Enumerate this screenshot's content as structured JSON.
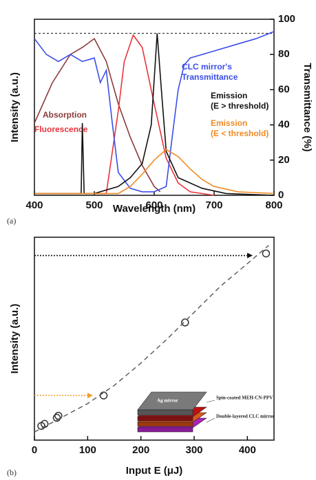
{
  "chart_data": [
    {
      "type": "line",
      "xlabel": "Wavelength (nm)",
      "ylabel": "Intensity (a.u.)",
      "y2label": "Transmittance (%)",
      "panel_label": "(a)",
      "xlim": [
        400,
        800
      ],
      "xticks": [
        400,
        500,
        600,
        700,
        800
      ],
      "ylim": [
        0,
        100
      ],
      "y2lim": [
        0,
        100
      ],
      "y2ticks": [
        0,
        20,
        40,
        60,
        80,
        100
      ],
      "reference_line": {
        "value": 92,
        "axis": "y2",
        "color": "#333333"
      },
      "series": [
        {
          "name": "Absorption",
          "color": "#8b3a3a",
          "mode": "lines",
          "x": [
            400,
            430,
            460,
            480,
            500,
            520,
            540,
            560,
            580,
            600,
            610
          ],
          "values": [
            41,
            64,
            80,
            84,
            89,
            76,
            52,
            33,
            17,
            5,
            2
          ]
        },
        {
          "name": "Fluorescence",
          "color": "#e8333a",
          "mode": "lines",
          "x": [
            500,
            520,
            540,
            550,
            565,
            580,
            600,
            620,
            640,
            660,
            700
          ],
          "values": [
            1,
            1,
            48,
            76,
            91,
            84,
            52,
            21,
            7,
            2,
            0
          ]
        },
        {
          "name": "CLC mirror's Transmittance",
          "color": "#3a4de8",
          "mode": "lines",
          "axis": "y2",
          "x": [
            400,
            420,
            440,
            460,
            480,
            500,
            510,
            520,
            530,
            540,
            560,
            580,
            600,
            620,
            630,
            640,
            650,
            660,
            700,
            740,
            770,
            800
          ],
          "values": [
            89,
            80,
            76,
            80,
            76,
            78,
            64,
            71,
            41,
            13,
            4,
            2,
            2,
            5,
            33,
            60,
            74,
            78,
            82,
            86,
            89,
            93
          ]
        },
        {
          "name": "Emission (E > threshold)",
          "color": "#111111",
          "mode": "lines",
          "x": [
            400,
            470,
            478,
            480,
            483,
            500,
            540,
            560,
            580,
            595,
            605,
            612,
            620,
            640,
            680,
            720,
            800
          ],
          "values": [
            1,
            1,
            1,
            41,
            1,
            1,
            5,
            10,
            18,
            40,
            92,
            60,
            25,
            10,
            4,
            1,
            0
          ]
        },
        {
          "name": "Emission (E < threshold)",
          "color": "#f08a24",
          "mode": "lines",
          "x": [
            400,
            540,
            560,
            580,
            600,
            620,
            640,
            660,
            680,
            700,
            740,
            800
          ],
          "values": [
            1,
            1,
            5,
            12,
            20,
            26,
            22,
            15,
            9,
            5,
            2,
            1
          ]
        }
      ]
    },
    {
      "type": "scatter",
      "xlabel": "Input E (μJ)",
      "ylabel": "Intensity (a.u.)",
      "panel_label": "(b)",
      "xlim": [
        0,
        450
      ],
      "xticks": [
        0,
        100,
        200,
        300,
        400
      ],
      "ylim": [
        0,
        100
      ],
      "arrows": [
        {
          "value": 91,
          "x": [
            0,
            410
          ],
          "color": "#111111"
        },
        {
          "value": 22,
          "x": [
            0,
            110
          ],
          "color": "#f0a030"
        }
      ],
      "series": [
        {
          "color": "#333333",
          "mode": "markers",
          "x": [
            13,
            19,
            42,
            45,
            130,
            283,
            435
          ],
          "values": [
            7,
            8,
            11,
            12,
            22,
            58,
            92
          ]
        },
        {
          "color": "#555555",
          "mode": "dashed",
          "x": [
            0,
            50,
            100,
            150,
            200,
            250,
            300,
            350,
            400,
            440
          ],
          "values": [
            4,
            11,
            18,
            27,
            38,
            50,
            63,
            76,
            87,
            96
          ]
        }
      ],
      "inset_labels": [
        "Ag mirror",
        "Spin-coated MEH-CN-PPV",
        "Double-layered CLC mirror"
      ]
    }
  ]
}
